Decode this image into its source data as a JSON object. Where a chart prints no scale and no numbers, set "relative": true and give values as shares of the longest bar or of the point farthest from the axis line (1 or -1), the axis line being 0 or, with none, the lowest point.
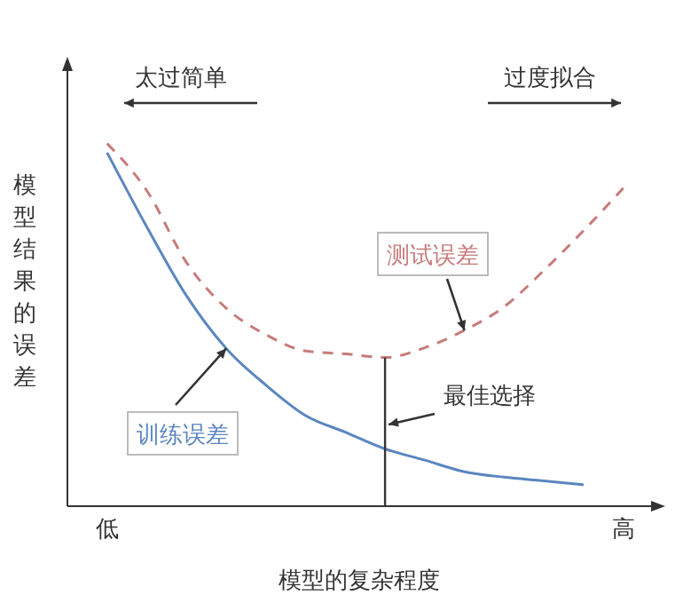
{
  "chart_data": {
    "type": "line",
    "relative": true,
    "xlabel": "模型的复杂程度",
    "ylabel": "模型结果的误差",
    "categories": [
      "低",
      null,
      null,
      null,
      null,
      null,
      null,
      null,
      null,
      null,
      null,
      null,
      null,
      "高"
    ],
    "marker": "none",
    "series": [
      {
        "name": "训练误差",
        "color": "#5b86c0",
        "line_style": "solid",
        "values": [
          0.975,
          0.77,
          0.58,
          0.435,
          0.334,
          0.25,
          0.204,
          0.158,
          0.127,
          0.095,
          0.08,
          0.07,
          0.059,
          null
        ]
      },
      {
        "name": "测试误差",
        "color": "#c77b7b",
        "line_style": "dashed",
        "values": [
          1.0,
          0.87,
          0.672,
          0.546,
          0.473,
          0.428,
          0.42,
          0.41,
          0.437,
          0.485,
          0.55,
          0.65,
          0.76,
          0.877
        ]
      }
    ],
    "annotations": [
      "太过简单",
      "过度拟合",
      "最佳选择"
    ]
  }
}
